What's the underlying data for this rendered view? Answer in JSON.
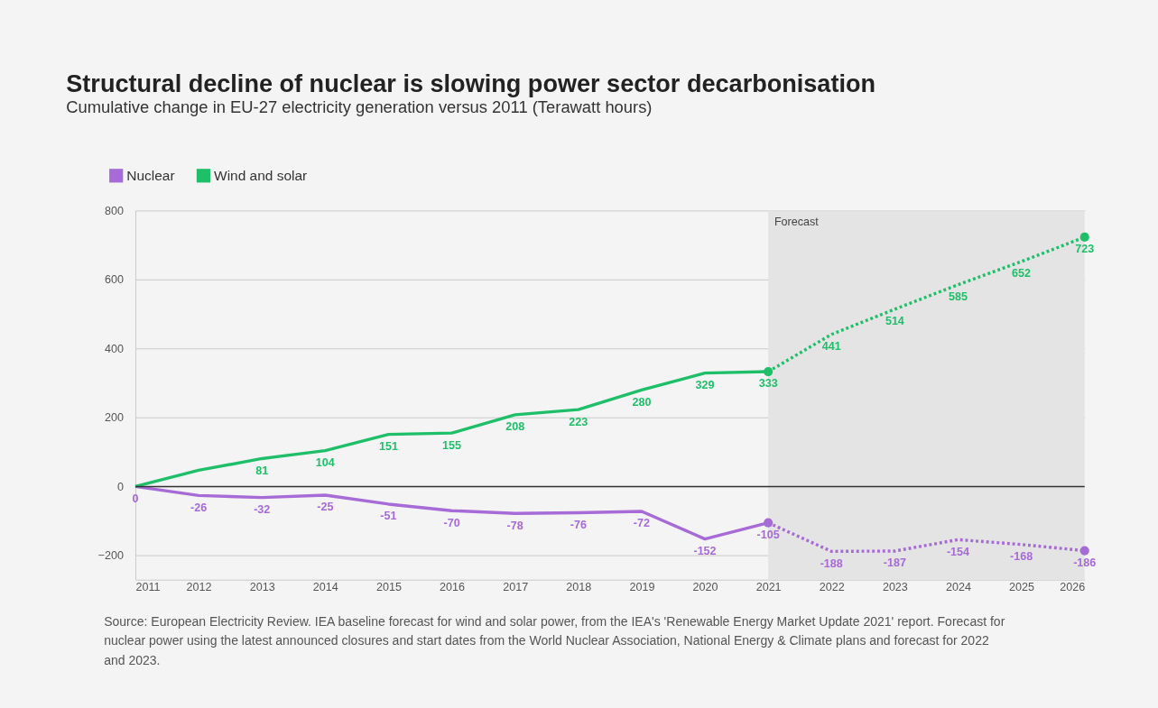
{
  "chart_data": {
    "type": "line",
    "title": "Structural decline of nuclear is slowing power sector decarbonisation",
    "subtitle": "Cumulative change in EU-27 electricity generation versus 2011 (Terawatt hours)",
    "xlim": [
      2011,
      2026
    ],
    "xticks": [
      2011,
      2012,
      2013,
      2014,
      2015,
      2016,
      2017,
      2018,
      2019,
      2020,
      2021,
      2022,
      2023,
      2024,
      2025,
      2026
    ],
    "ylim": [
      -270,
      800
    ],
    "yticks": [
      -200,
      0,
      200,
      400,
      600,
      800
    ],
    "grid": "y",
    "legend": "top left",
    "series": [
      {
        "name": "Nuclear",
        "color": "#a66bd6",
        "line_style": "solid",
        "x": [
          2011,
          2012,
          2013,
          2014,
          2015,
          2016,
          2017,
          2018,
          2019,
          2020,
          2021
        ],
        "values": [
          0,
          -26,
          -32,
          -25,
          -51,
          -70,
          -78,
          -76,
          -72,
          -152,
          -105
        ],
        "value_labels": [
          "0",
          "-26",
          "-32",
          "-25",
          "-51",
          "-70",
          "-78",
          "-76",
          "-72",
          "-152",
          "-105"
        ]
      },
      {
        "name": "Wind and solar",
        "color": "#1fbf6a",
        "line_style": "solid",
        "x": [
          2011,
          2012,
          2013,
          2014,
          2015,
          2016,
          2017,
          2018,
          2019,
          2020,
          2021
        ],
        "values": [
          0,
          47,
          81,
          104,
          151,
          155,
          208,
          223,
          280,
          329,
          333
        ],
        "value_labels": [
          null,
          null,
          "81",
          "104",
          "151",
          "155",
          "208",
          "223",
          "280",
          "329",
          "333"
        ]
      },
      {
        "color": "#a66bd6",
        "line_style": "dotted",
        "x": [
          2021,
          2022,
          2023,
          2024,
          2025,
          2026
        ],
        "values": [
          -105,
          -188,
          -187,
          -154,
          -168,
          -186
        ],
        "value_labels": [
          null,
          "-188",
          "-187",
          "-154",
          "-168",
          "-186"
        ]
      },
      {
        "color": "#1fbf6a",
        "line_style": "dotted",
        "x": [
          2021,
          2022,
          2023,
          2024,
          2025,
          2026
        ],
        "values": [
          333,
          441,
          514,
          585,
          652,
          723
        ],
        "value_labels": [
          null,
          "441",
          "514",
          "585",
          "652",
          "723"
        ]
      },
      {
        "type": "scatter",
        "marker": "circle",
        "color": "#a66bd6",
        "x": [
          2021,
          2026
        ],
        "values": [
          -105,
          -186
        ]
      },
      {
        "type": "scatter",
        "marker": "circle",
        "color": "#1fbf6a",
        "x": [
          2021,
          2026
        ],
        "values": [
          333,
          723
        ]
      }
    ],
    "bands": [
      {
        "axis": "x",
        "from": 2021,
        "to": 2026,
        "label": "Forecast",
        "color": "#e4e4e4"
      }
    ],
    "ref_lines": [
      {
        "axis": "y",
        "value": 0,
        "color": "#333333"
      }
    ],
    "annotations": [
      "Source: European Electricity Review. IEA baseline forecast for wind and solar power, from the IEA's 'Renewable Energy Market Update 2021' report. Forecast for nuclear power using the latest announced closures and start dates from the World Nuclear Association, National Energy & Climate plans and forecast for 2022 and 2023."
    ]
  }
}
